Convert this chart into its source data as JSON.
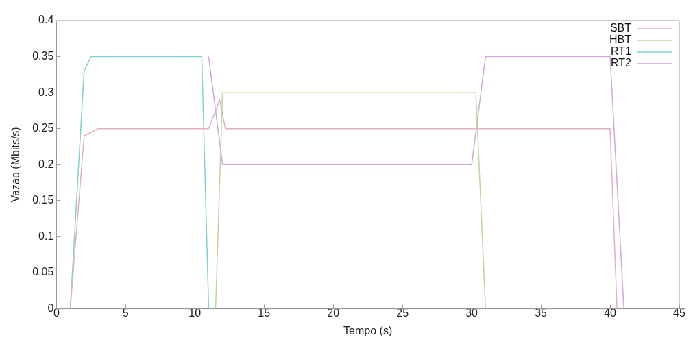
{
  "chart_data": {
    "type": "line",
    "xlabel": "Tempo (s)",
    "ylabel": "Vazao (Mbits/s)",
    "xlim": [
      0,
      45
    ],
    "xticks": [
      0,
      5,
      10,
      15,
      20,
      25,
      30,
      35,
      40,
      45
    ],
    "ylim": [
      0,
      0.4
    ],
    "yticks": [
      0,
      0.05,
      0.1,
      0.15,
      0.2,
      0.25,
      0.3,
      0.35,
      0.4
    ],
    "grid": false,
    "legend": "top right",
    "marker": "none",
    "line_style": "solid",
    "series": [
      {
        "name": "SBT",
        "color": "#e4b0c0",
        "x": [
          1,
          2,
          3,
          11,
          11.8,
          12.2,
          30,
          32,
          40,
          40.5
        ],
        "values": [
          0,
          0.24,
          0.25,
          0.25,
          0.29,
          0.25,
          0.25,
          0.25,
          0.25,
          0
        ]
      },
      {
        "name": "HBT",
        "color": "#b8d8a0",
        "x": [
          11.5,
          12,
          30,
          30.3,
          31
        ],
        "values": [
          0,
          0.3,
          0.3,
          0.3,
          0
        ]
      },
      {
        "name": "RT1",
        "color": "#80d0d0",
        "x": [
          1,
          2,
          2.5,
          10.5,
          11
        ],
        "values": [
          0,
          0.33,
          0.35,
          0.35,
          0
        ]
      },
      {
        "name": "RT2",
        "color": "#d0a8d8",
        "x": [
          11,
          12,
          30,
          31,
          40,
          41
        ],
        "values": [
          0.35,
          0.2,
          0.2,
          0.35,
          0.35,
          0
        ]
      }
    ]
  }
}
